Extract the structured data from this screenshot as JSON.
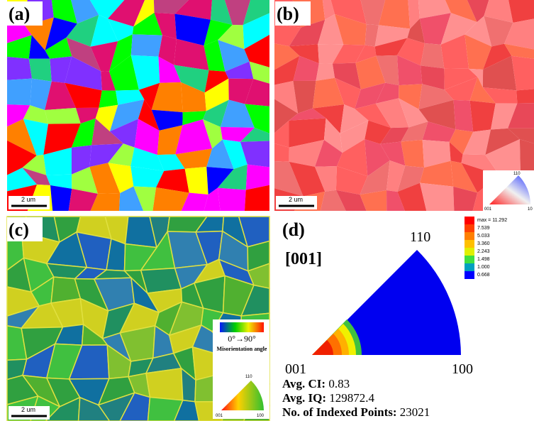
{
  "panels": [
    {
      "label": "(a)",
      "scale_bar": "2 um"
    },
    {
      "label": "(b)",
      "scale_bar": "2 um",
      "key": {
        "top": "110",
        "left": "001",
        "right": "10"
      }
    },
    {
      "label": "(c)",
      "scale_bar": "2 um",
      "range": "0°→90°",
      "caption": "Misorientation angle",
      "key": {
        "top": "110",
        "left": "001",
        "right": "100"
      }
    },
    {
      "label": "(d)",
      "direction": "[001]",
      "corners": {
        "top": "110",
        "left": "001",
        "right": "100"
      },
      "legend": [
        "max = 11.292",
        "7.539",
        "5.033",
        "3.360",
        "2.243",
        "1.498",
        "1.000",
        "0.668"
      ],
      "stats": [
        {
          "label": "Avg. CI:",
          "value": 0.83
        },
        {
          "label": "Avg. IQ:",
          "value": 129872.4
        },
        {
          "label": "No. of Indexed Points:",
          "value": 23021
        }
      ]
    }
  ]
}
